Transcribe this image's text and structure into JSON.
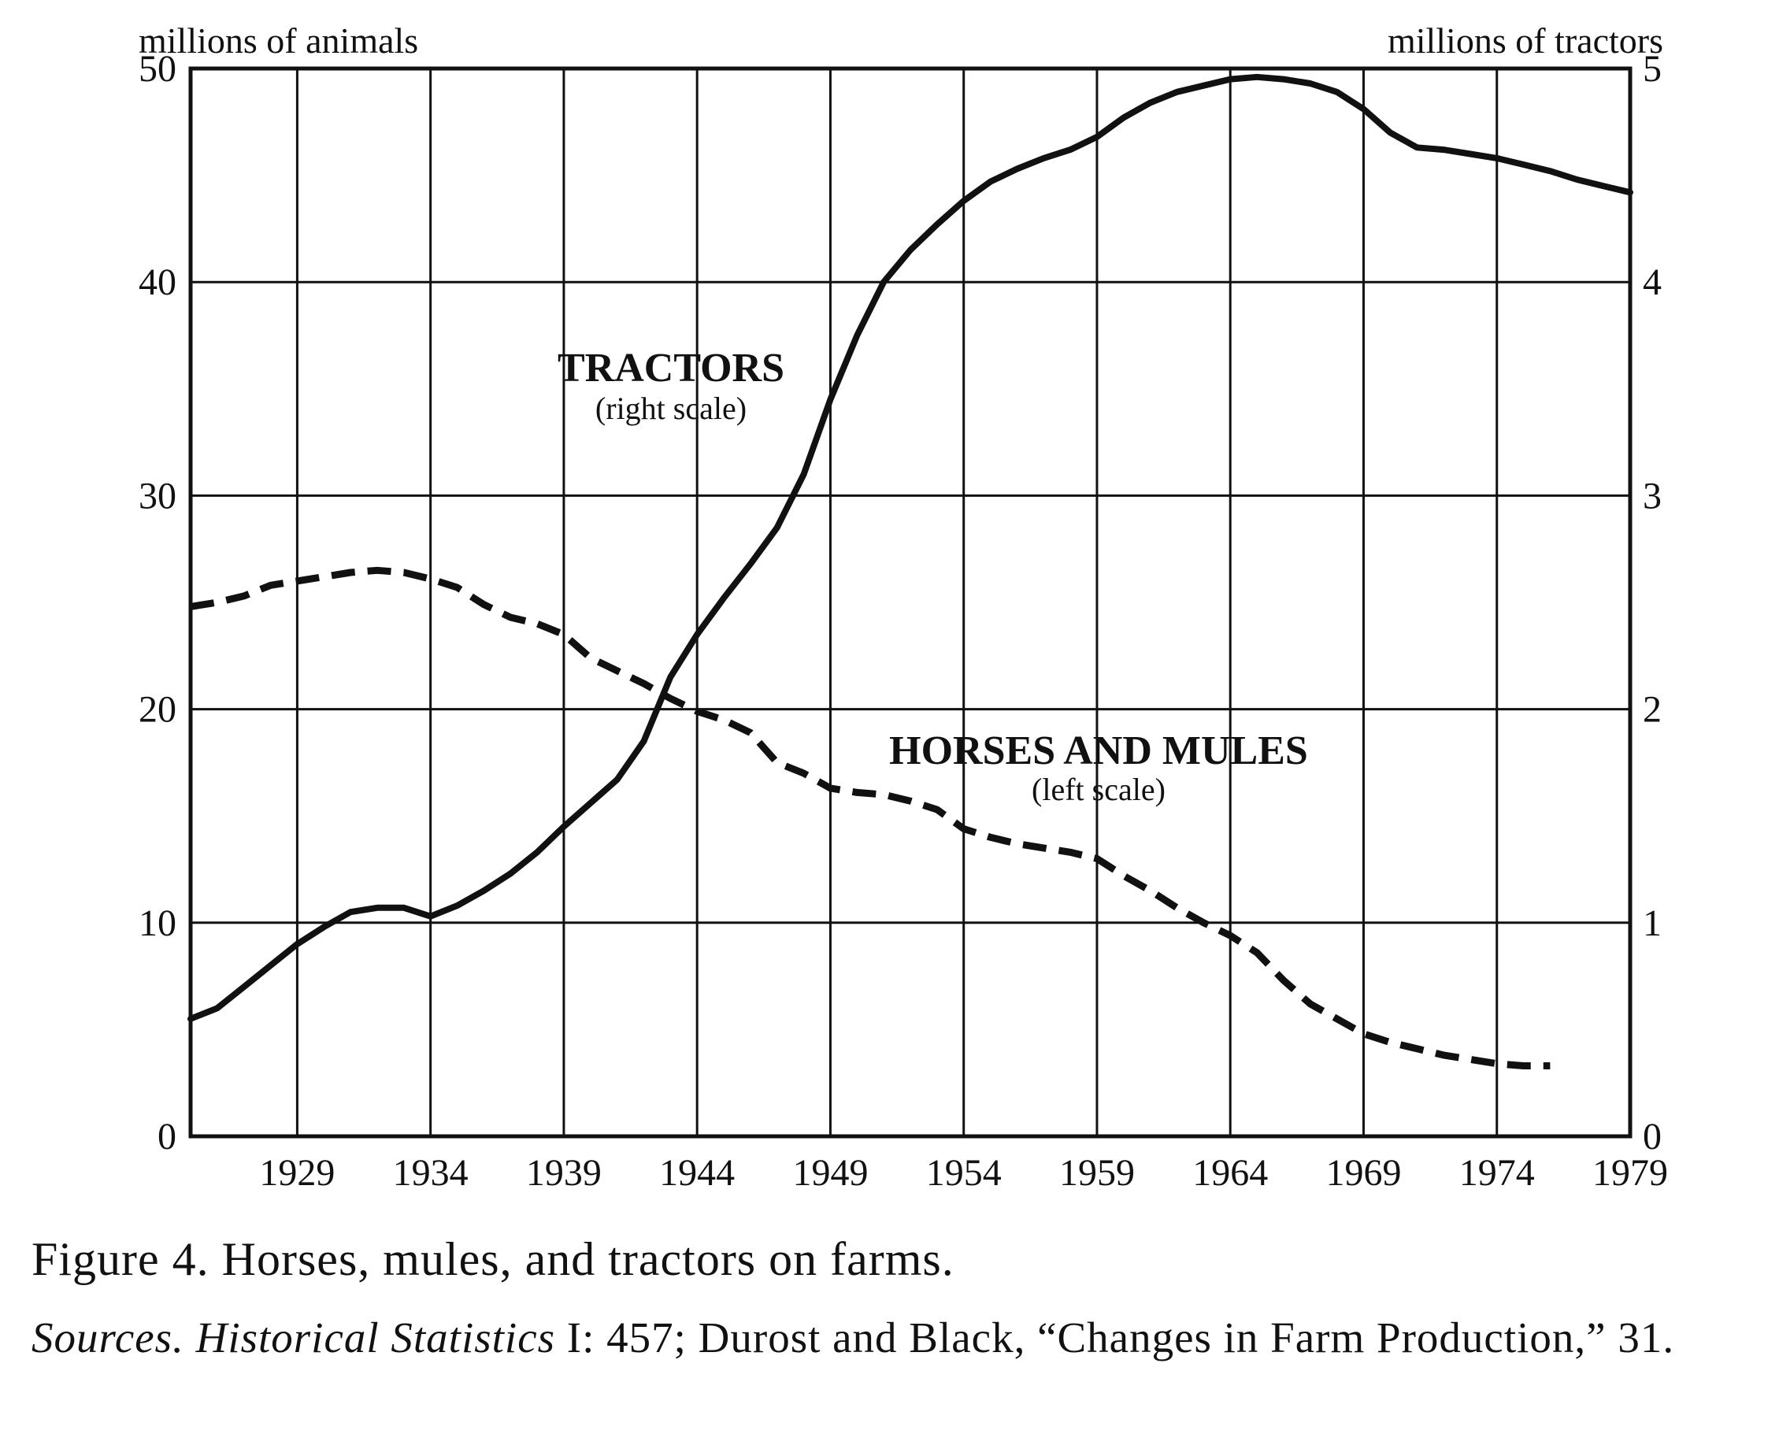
{
  "chart_data": {
    "type": "line",
    "left_axis_title": "millions of animals",
    "right_axis_title": "millions of tractors",
    "left_ticks": [
      "0",
      "10",
      "20",
      "30",
      "40",
      "50"
    ],
    "right_ticks": [
      "0",
      "1",
      "2",
      "3",
      "4",
      "5"
    ],
    "x_ticks": [
      "1929",
      "1934",
      "1939",
      "1944",
      "1949",
      "1954",
      "1959",
      "1964",
      "1969",
      "1974",
      "1979"
    ],
    "xlim": [
      1925,
      1979
    ],
    "ylim_left": [
      0,
      50
    ],
    "ylim_right": [
      0,
      5
    ],
    "grid": true,
    "series": [
      {
        "name": "TRACTORS",
        "subtitle": "(right scale)",
        "axis": "right",
        "style": "solid",
        "x": [
          1925,
          1926,
          1927,
          1928,
          1929,
          1930,
          1931,
          1932,
          1933,
          1934,
          1935,
          1936,
          1937,
          1938,
          1939,
          1940,
          1941,
          1942,
          1943,
          1944,
          1945,
          1946,
          1947,
          1948,
          1949,
          1950,
          1951,
          1952,
          1953,
          1954,
          1955,
          1956,
          1957,
          1958,
          1959,
          1960,
          1961,
          1962,
          1963,
          1964,
          1965,
          1966,
          1967,
          1968,
          1969,
          1970,
          1971,
          1972,
          1973,
          1974,
          1975,
          1976,
          1977,
          1978,
          1979
        ],
        "values": [
          0.55,
          0.6,
          0.7,
          0.8,
          0.9,
          0.98,
          1.05,
          1.07,
          1.07,
          1.03,
          1.08,
          1.15,
          1.23,
          1.33,
          1.45,
          1.56,
          1.67,
          1.85,
          2.15,
          2.35,
          2.52,
          2.68,
          2.85,
          3.1,
          3.45,
          3.75,
          4.0,
          4.15,
          4.27,
          4.38,
          4.47,
          4.53,
          4.58,
          4.62,
          4.68,
          4.77,
          4.84,
          4.89,
          4.92,
          4.95,
          4.96,
          4.95,
          4.93,
          4.89,
          4.81,
          4.7,
          4.63,
          4.62,
          4.6,
          4.58,
          4.55,
          4.52,
          4.48,
          4.45,
          4.42
        ]
      },
      {
        "name": "HORSES AND MULES",
        "subtitle": "(left scale)",
        "axis": "left",
        "style": "dashed",
        "x": [
          1925,
          1926,
          1927,
          1928,
          1929,
          1930,
          1931,
          1932,
          1933,
          1934,
          1935,
          1936,
          1937,
          1938,
          1939,
          1940,
          1941,
          1942,
          1943,
          1944,
          1945,
          1946,
          1947,
          1948,
          1949,
          1950,
          1951,
          1952,
          1953,
          1954,
          1955,
          1956,
          1957,
          1958,
          1959,
          1960,
          1961,
          1962,
          1963,
          1964,
          1965,
          1966,
          1967,
          1968,
          1969,
          1970,
          1971,
          1972,
          1973,
          1974,
          1975,
          1976
        ],
        "values": [
          24.8,
          25.0,
          25.3,
          25.8,
          26.0,
          26.2,
          26.4,
          26.5,
          26.4,
          26.1,
          25.7,
          24.9,
          24.3,
          24.0,
          23.5,
          22.4,
          21.8,
          21.2,
          20.5,
          19.9,
          19.5,
          18.9,
          17.5,
          17.0,
          16.3,
          16.1,
          16.0,
          15.7,
          15.3,
          14.4,
          14.0,
          13.7,
          13.5,
          13.3,
          13.0,
          12.2,
          11.5,
          10.7,
          10.0,
          9.4,
          8.6,
          7.3,
          6.2,
          5.5,
          4.8,
          4.4,
          4.1,
          3.8,
          3.6,
          3.4,
          3.3,
          3.3
        ]
      }
    ]
  },
  "caption": {
    "title": "Figure 4. Horses, mules, and tractors on farms.",
    "sources_italic_1": "Sources.",
    "sources_italic_2": "Historical Statistics",
    "sources_text": "I: 457; Durost and Black, “Changes in Farm Production,” 31."
  }
}
